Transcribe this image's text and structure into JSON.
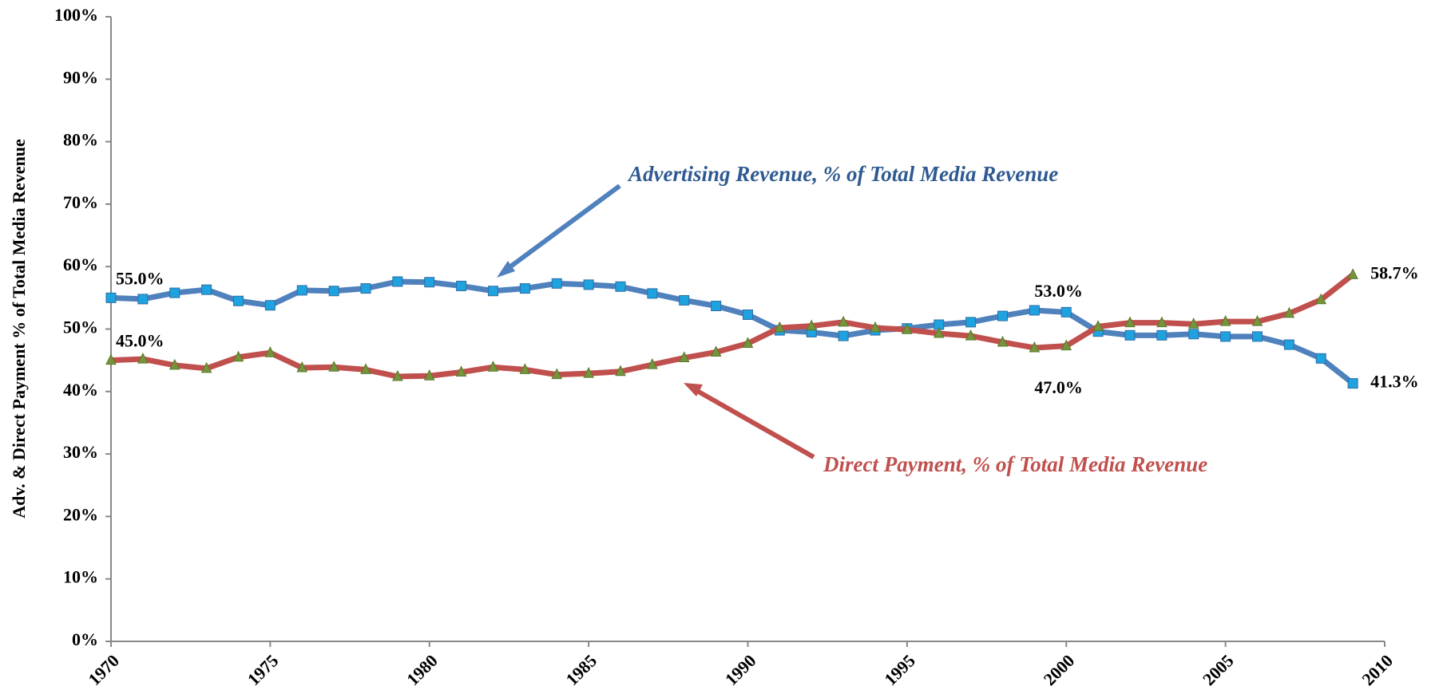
{
  "chart_data": {
    "type": "line",
    "y_label": "Adv. & Direct  Payment  % of Total Media Revenue",
    "x": [
      1970,
      1971,
      1972,
      1973,
      1974,
      1975,
      1976,
      1977,
      1978,
      1979,
      1980,
      1981,
      1982,
      1983,
      1984,
      1985,
      1986,
      1987,
      1988,
      1989,
      1990,
      1991,
      1992,
      1993,
      1994,
      1995,
      1996,
      1997,
      1998,
      1999,
      2000,
      2001,
      2002,
      2003,
      2004,
      2005,
      2006,
      2007,
      2008,
      2009
    ],
    "series": [
      {
        "name": "Advertising Revenue, % of Total Media Revenue",
        "color": "#4f81bd",
        "marker_color": "#1ea3e0",
        "values": [
          55.0,
          54.8,
          55.8,
          56.3,
          54.5,
          53.8,
          56.2,
          56.1,
          56.5,
          57.6,
          57.5,
          56.9,
          56.1,
          56.5,
          57.3,
          57.1,
          56.8,
          55.7,
          54.6,
          53.7,
          52.3,
          49.8,
          49.5,
          48.9,
          49.8,
          50.1,
          50.7,
          51.1,
          52.1,
          53.0,
          52.7,
          49.6,
          49.0,
          49.0,
          49.2,
          48.8,
          48.8,
          47.5,
          45.3,
          41.3
        ],
        "value_labels": [
          "55.0%",
          null,
          null,
          null,
          null,
          null,
          null,
          null,
          null,
          null,
          null,
          null,
          null,
          null,
          null,
          null,
          null,
          null,
          null,
          null,
          null,
          null,
          null,
          null,
          null,
          null,
          null,
          null,
          null,
          "53.0%",
          null,
          null,
          null,
          null,
          null,
          null,
          null,
          null,
          null,
          "41.3%"
        ]
      },
      {
        "name": "Direct Payment, % of Total Media Revenue",
        "color": "#c0504d",
        "marker_color": "#77933c",
        "values": [
          45.0,
          45.2,
          44.2,
          43.7,
          45.5,
          46.2,
          43.8,
          43.9,
          43.5,
          42.4,
          42.5,
          43.1,
          43.9,
          43.5,
          42.7,
          42.9,
          43.2,
          44.3,
          45.4,
          46.3,
          47.7,
          50.2,
          50.5,
          51.1,
          50.2,
          49.9,
          49.3,
          48.9,
          47.9,
          47.0,
          47.3,
          50.4,
          51.0,
          51.0,
          50.8,
          51.2,
          51.2,
          52.5,
          54.7,
          58.7
        ],
        "value_labels": [
          "45.0%",
          null,
          null,
          null,
          null,
          null,
          null,
          null,
          null,
          null,
          null,
          null,
          null,
          null,
          null,
          null,
          null,
          null,
          null,
          null,
          null,
          null,
          null,
          null,
          null,
          null,
          null,
          null,
          null,
          "47.0%",
          null,
          null,
          null,
          null,
          null,
          null,
          null,
          null,
          null,
          "58.7%"
        ]
      }
    ],
    "xlim": [
      1970,
      2010
    ],
    "xticks": [
      1970,
      1975,
      1980,
      1985,
      1990,
      1995,
      2000,
      2005,
      2010
    ],
    "ylim": [
      0,
      100
    ],
    "yticks": [
      {
        "value": 0,
        "label": "0%"
      },
      {
        "value": 10,
        "label": "10%"
      },
      {
        "value": 20,
        "label": "20%"
      },
      {
        "value": 30,
        "label": "30%"
      },
      {
        "value": 40,
        "label": "40%"
      },
      {
        "value": 50,
        "label": "50%"
      },
      {
        "value": 60,
        "label": "60%"
      },
      {
        "value": 70,
        "label": "70%"
      },
      {
        "value": 80,
        "label": "80%"
      },
      {
        "value": 90,
        "label": "90%"
      },
      {
        "value": 100,
        "label": "100%"
      }
    ],
    "grid": false
  }
}
